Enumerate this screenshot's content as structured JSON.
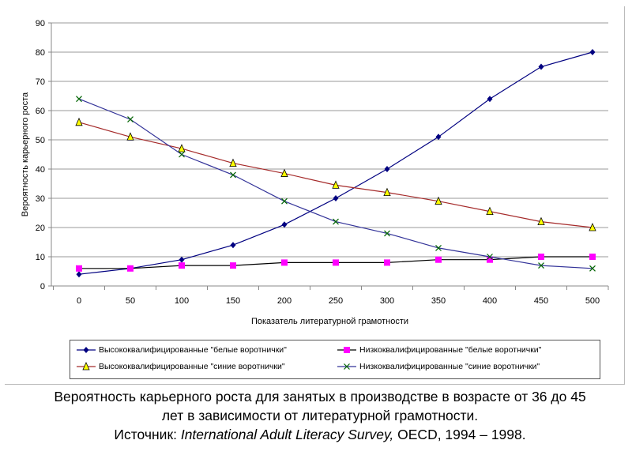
{
  "chart_data": {
    "type": "line",
    "title": "",
    "xlabel": "Показатель литературной грамотности",
    "ylabel": "Вероятность карьерного роста",
    "x": [
      0,
      50,
      100,
      150,
      200,
      250,
      300,
      350,
      400,
      450,
      500
    ],
    "xlim": [
      0,
      500
    ],
    "ylim": [
      0,
      90
    ],
    "yticks": [
      0,
      10,
      20,
      30,
      40,
      50,
      60,
      70,
      80,
      90
    ],
    "grid": true,
    "legend_position": "bottom",
    "series": [
      {
        "name": "Высококвалифицированные \"белые воротнички\"",
        "color": "#000080",
        "marker": "diamond",
        "values": [
          4,
          6,
          9,
          14,
          21,
          30,
          40,
          51,
          64,
          75,
          80
        ]
      },
      {
        "name": "Низкоквалифицированные \"белые воротнички\"",
        "color": "#ff00ff",
        "line": "#000000",
        "marker": "square",
        "values": [
          6,
          6,
          7,
          7,
          8,
          8,
          8,
          9,
          9,
          10,
          10
        ]
      },
      {
        "name": "Высококвалифицированные \"синие воротнички\"",
        "color": "#a52a2a",
        "marker": "triangle",
        "values": [
          56,
          51,
          47,
          42,
          38.5,
          34.5,
          32,
          29,
          25.5,
          22,
          20
        ]
      },
      {
        "name": "Низкоквалифицированные \"синие воротнички\"",
        "color": "#333399",
        "marker": "x",
        "values": [
          64,
          57,
          45,
          38,
          29,
          22,
          18,
          13,
          10,
          7,
          6
        ]
      }
    ]
  },
  "caption": {
    "line1": "Вероятность карьерного роста для занятых в производстве в возрасте от 36 до 45",
    "line2": "лет в зависимости от литературной грамотности.",
    "source_label": "Источник: ",
    "source_name": "International Adult Literacy Survey,",
    "source_rest": " OECD, 1994 – 1998."
  }
}
